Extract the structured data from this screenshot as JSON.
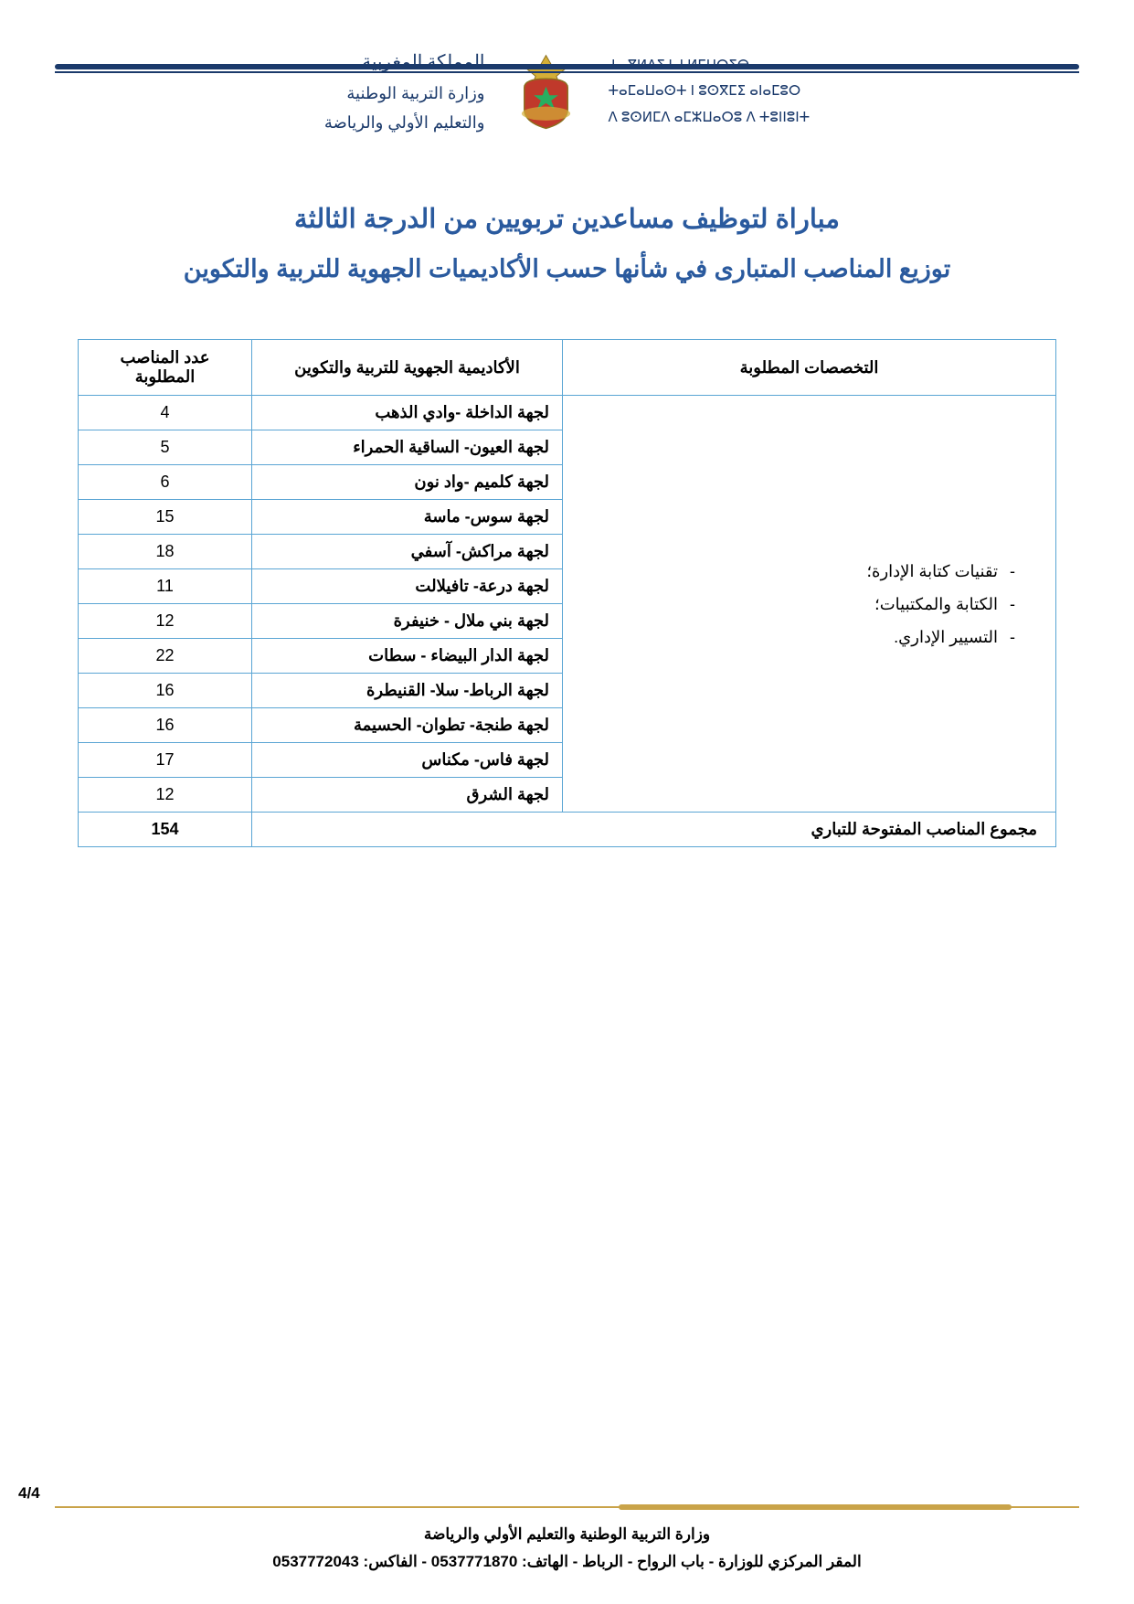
{
  "colors": {
    "accent_blue": "#2a5a9e",
    "border_blue": "#5aa5d4",
    "dark_blue": "#1b3a6b",
    "gold": "#c9a349",
    "text": "#000000",
    "background": "#ffffff"
  },
  "header": {
    "arabic_line1": "المملكة المغربية",
    "arabic_line2": "وزارة التربية الوطنية",
    "arabic_line3": "والتعليم الأولي والرياضة",
    "tifinagh_line1": "ⵜⴰⴳⵍⴷⵉⵜ ⵏ ⵍⵎⵖⵔⵉⴱ",
    "tifinagh_line2": "ⵜⴰⵎⴰⵡⴰⵙⵜ ⵏ ⵓⵙⴳⵎⵉ ⴰⵏⴰⵎⵓⵔ",
    "tifinagh_line3": "ⴷ ⵓⵙⵍⵎⴷ ⴰⵎⵣⵡⴰⵔⵓ ⴷ ⵜⵓⵏⵏⵓⵏⵜ"
  },
  "title": "مباراة لتوظيف مساعدين تربويين من الدرجة الثالثة",
  "subtitle": "توزيع المناصب المتبارى في شأنها حسب الأكاديميات الجهوية للتربية والتكوين",
  "table": {
    "columns": [
      "التخصصات المطلوبة",
      "الأكاديمية الجهوية للتربية والتكوين",
      "عدد المناصب المطلوبة"
    ],
    "spec_items": [
      "تقنيات كتابة الإدارة؛",
      "الكتابة والمكتبيات؛",
      "التسيير الإداري."
    ],
    "rows": [
      {
        "academy": "لجهة الداخلة -وادي الذهب",
        "count": "4"
      },
      {
        "academy": "لجهة العيون- الساقية الحمراء",
        "count": "5"
      },
      {
        "academy": "لجهة كلميم -واد نون",
        "count": "6"
      },
      {
        "academy": "لجهة سوس- ماسة",
        "count": "15"
      },
      {
        "academy": "لجهة مراكش- آسفي",
        "count": "18"
      },
      {
        "academy": "لجهة درعة- تافيلالت",
        "count": "11"
      },
      {
        "academy": "لجهة بني ملال - خنيفرة",
        "count": "12"
      },
      {
        "academy": "لجهة الدار البيضاء - سطات",
        "count": "22"
      },
      {
        "academy": "لجهة الرباط- سلا- القنيطرة",
        "count": "16"
      },
      {
        "academy": "لجهة طنجة- تطوان-  الحسيمة",
        "count": "16"
      },
      {
        "academy": "لجهة فاس- مكناس",
        "count": "17"
      },
      {
        "academy": "لجهة الشرق",
        "count": "12"
      }
    ],
    "total_label": "مجموع المناصب المفتوحة للتباري",
    "total_value": "154"
  },
  "footer": {
    "page_number": "4/4",
    "line1": "وزارة التربية الوطنية والتعليم الأولي والرياضة",
    "line2": "المقر المركزي للوزارة - باب الرواح - الرباط - الهاتف: 0537771870 - الفاكس: 0537772043"
  }
}
